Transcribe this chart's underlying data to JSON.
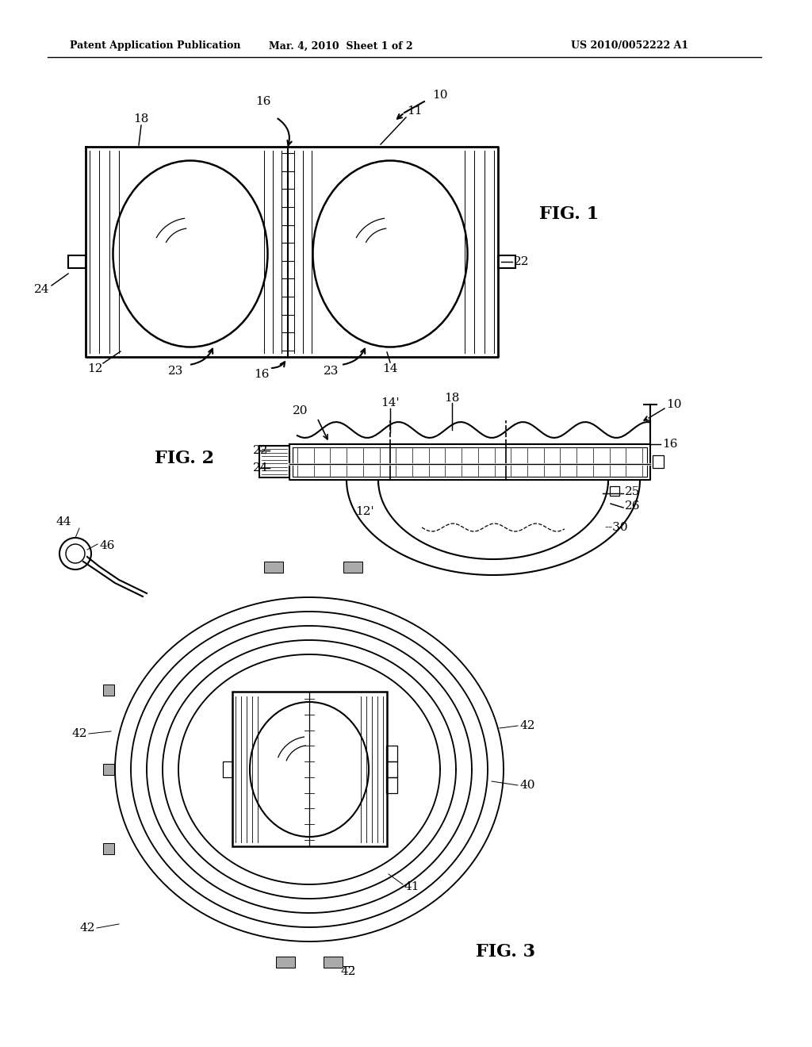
{
  "background_color": "#ffffff",
  "header_left": "Patent Application Publication",
  "header_mid": "Mar. 4, 2010  Sheet 1 of 2",
  "header_right": "US 2010/0052222 A1",
  "line_color": "#000000",
  "line_width": 1.5
}
